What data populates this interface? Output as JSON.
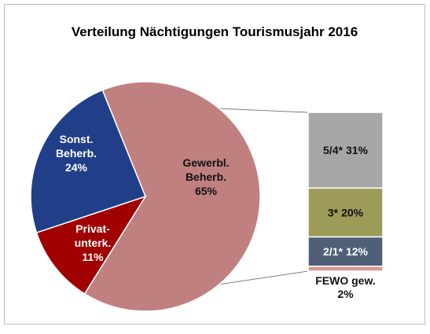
{
  "chart_data": {
    "type": "pie-of-bar",
    "title": "Verteilung Nächtigungen Tourismusjahr 2016",
    "pie": {
      "series": [
        {
          "label_lines": [
            "Gewerbl.",
            "Beherb."
          ],
          "color": "#c0807f",
          "values": [
            65
          ],
          "value_labels": [
            "65%"
          ]
        },
        {
          "label_lines": [
            "Privat-",
            "unterk."
          ],
          "color": "#a00000",
          "values": [
            11
          ],
          "value_labels": [
            "11%"
          ]
        },
        {
          "label_lines": [
            "Sonst.",
            "Beherb."
          ],
          "color": "#203f88",
          "values": [
            24
          ],
          "value_labels": [
            "24%"
          ]
        }
      ]
    },
    "bar": {
      "series": [
        {
          "name": "5/4*",
          "color": "#a6a6a6",
          "values": [
            31
          ],
          "value_labels": [
            "31%"
          ]
        },
        {
          "name": "3*",
          "color": "#9d9b58",
          "values": [
            20
          ],
          "value_labels": [
            "20%"
          ]
        },
        {
          "name": "2/1*",
          "color": "#4f5f78",
          "values": [
            12
          ],
          "value_labels": [
            "12%"
          ]
        },
        {
          "name": "FEWO gew.",
          "color": "#d99594",
          "values": [
            2
          ],
          "value_labels": [
            "2%"
          ]
        }
      ]
    }
  }
}
